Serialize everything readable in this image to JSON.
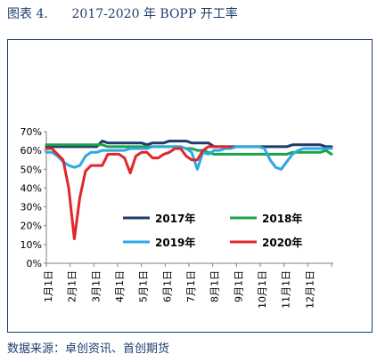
{
  "figure": {
    "title": "图表 4.      2017-2020 年 BOPP 开工率",
    "source": "数据来源：卓创资讯、首创期货"
  },
  "chart_data": {
    "type": "line",
    "title": "",
    "xlabel": "",
    "ylabel": "",
    "ylim": [
      0,
      70
    ],
    "yticks": [
      "0%",
      "10%",
      "20%",
      "30%",
      "40%",
      "50%",
      "60%",
      "70%"
    ],
    "categories": [
      "1月1日",
      "2月1日",
      "3月1日",
      "4月1日",
      "5月1日",
      "6月1日",
      "7月1日",
      "8月1日",
      "9月1日",
      "10月1日",
      "11月1日",
      "12月1日"
    ],
    "grid": false,
    "legend": "inside-bottom",
    "series": [
      {
        "name": "2017年",
        "color": "#1f3a6b",
        "x": [
          1,
          2,
          3,
          4,
          5,
          6,
          7,
          8,
          9,
          10,
          11,
          12,
          13,
          14,
          15,
          16,
          17,
          18,
          19,
          20,
          21,
          22,
          23,
          24,
          25,
          26,
          27,
          28,
          29,
          30,
          31,
          32,
          33,
          34,
          35,
          36,
          37,
          38,
          39,
          40,
          41,
          42,
          43,
          44,
          45,
          46,
          47,
          48,
          49,
          50,
          51,
          52
        ],
        "values": [
          62,
          62,
          62,
          62,
          62,
          62,
          62,
          62,
          62,
          62,
          65,
          64,
          64,
          64,
          64,
          64,
          64,
          64,
          63,
          64,
          64,
          64,
          65,
          65,
          65,
          65,
          64,
          64,
          64,
          64,
          62,
          62,
          62,
          62,
          62,
          62,
          62,
          62,
          62,
          62,
          62,
          62,
          62,
          62,
          63,
          63,
          63,
          63,
          63,
          63,
          62,
          62
        ]
      },
      {
        "name": "2018年",
        "color": "#1aa34a",
        "x": [
          1,
          2,
          3,
          4,
          5,
          6,
          7,
          8,
          9,
          10,
          11,
          12,
          13,
          14,
          15,
          16,
          17,
          18,
          19,
          20,
          21,
          22,
          23,
          24,
          25,
          26,
          27,
          28,
          29,
          30,
          31,
          32,
          33,
          34,
          35,
          36,
          37,
          38,
          39,
          40,
          41,
          42,
          43,
          44,
          45,
          46,
          47,
          48,
          49,
          50,
          51,
          52
        ],
        "values": [
          63,
          63,
          63,
          63,
          63,
          63,
          63,
          63,
          63,
          63,
          63,
          62,
          62,
          62,
          62,
          62,
          62,
          62,
          62,
          62,
          62,
          62,
          62,
          62,
          62,
          61,
          61,
          60,
          60,
          59,
          58,
          58,
          58,
          58,
          58,
          58,
          58,
          58,
          58,
          58,
          58,
          58,
          58,
          58,
          59,
          59,
          59,
          59,
          59,
          59,
          60,
          58
        ]
      },
      {
        "name": "2019年",
        "color": "#2ea8e0",
        "x": [
          1,
          2,
          3,
          4,
          5,
          6,
          7,
          8,
          9,
          10,
          11,
          12,
          13,
          14,
          15,
          16,
          17,
          18,
          19,
          20,
          21,
          22,
          23,
          24,
          25,
          26,
          27,
          28,
          29,
          30,
          31,
          32,
          33,
          34,
          35,
          36,
          37,
          38,
          39,
          40,
          41,
          42,
          43,
          44,
          45,
          46,
          47,
          48,
          49,
          50,
          51,
          52
        ],
        "values": [
          59,
          59,
          57,
          54,
          52,
          51,
          52,
          57,
          59,
          59,
          60,
          60,
          60,
          60,
          60,
          61,
          61,
          61,
          61,
          62,
          62,
          62,
          62,
          62,
          62,
          61,
          59,
          50,
          59,
          58,
          60,
          60,
          61,
          61,
          62,
          62,
          62,
          62,
          62,
          61,
          55,
          51,
          50,
          54,
          58,
          60,
          61,
          61,
          61,
          61,
          61,
          61
        ]
      },
      {
        "name": "2020年",
        "color": "#e0262a",
        "x": [
          1,
          2,
          3,
          4,
          5,
          6,
          7,
          8,
          9,
          10,
          11,
          12,
          13,
          14,
          15,
          16,
          17,
          18,
          19,
          20,
          21,
          22,
          23,
          24,
          25,
          26,
          27,
          28,
          29,
          30,
          31,
          32,
          33,
          34
        ],
        "values": [
          61,
          61,
          58,
          55,
          40,
          13,
          35,
          49,
          52,
          52,
          52,
          58,
          58,
          58,
          56,
          48,
          57,
          59,
          59,
          56,
          56,
          58,
          59,
          61,
          61,
          57,
          55,
          55,
          60,
          62,
          62,
          62,
          62,
          62
        ]
      }
    ]
  },
  "colors": {
    "frame": "#1f3f6e",
    "axis": "#7f7f7f"
  }
}
